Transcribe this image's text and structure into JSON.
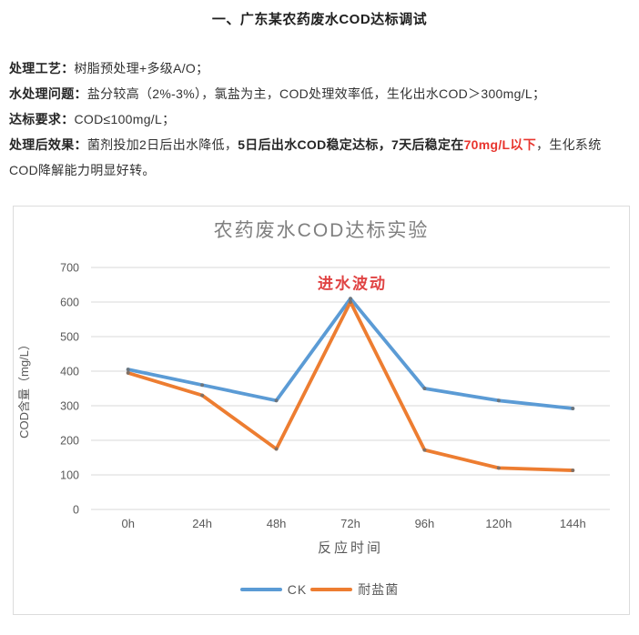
{
  "page": {
    "title": "一、广东某农药废水COD达标调试"
  },
  "paragraphs": {
    "p1": {
      "label": "处理工艺：",
      "text": "树脂预处理+多级A/O；"
    },
    "p2": {
      "label": "水处理问题：",
      "text": "盐分较高（2%-3%），氯盐为主，COD处理效率低，生化出水COD＞300mg/L；"
    },
    "p3": {
      "label": "达标要求：",
      "text": "COD≤100mg/L；"
    },
    "p4": {
      "label": "处理后效果：",
      "part1": "菌剂投加2日后出水降低，",
      "part2": "5日后出水COD稳定达标，7天后稳定在",
      "part3": "70mg/L以下",
      "part4": "，生化系统COD降解能力明显好转。",
      "highlight_color": "#e8352e"
    }
  },
  "chart_data": {
    "type": "line",
    "title": "农药废水COD达标实验",
    "xlabel": "反应时间",
    "ylabel": "COD含量（mg/L）",
    "categories": [
      "0h",
      "24h",
      "48h",
      "72h",
      "96h",
      "120h",
      "144h"
    ],
    "series": [
      {
        "name": "CK",
        "color": "#5b9bd5",
        "values": [
          405,
          360,
          315,
          610,
          350,
          315,
          292
        ]
      },
      {
        "name": "耐盐菌",
        "color": "#ed7d31",
        "values": [
          395,
          330,
          175,
          600,
          172,
          120,
          113
        ]
      }
    ],
    "ylim": [
      0,
      700
    ],
    "ytick_step": 100,
    "grid": true,
    "legend_position": "bottom",
    "colors": {
      "gridline": "#d9d9d9",
      "axis_text": "#595959",
      "title_text": "#7f7f7f",
      "marker": "#6e6e6e"
    },
    "annotation": {
      "text": "进水波动",
      "color": "#e04343",
      "x_category": "72h",
      "y_value": 638
    }
  }
}
